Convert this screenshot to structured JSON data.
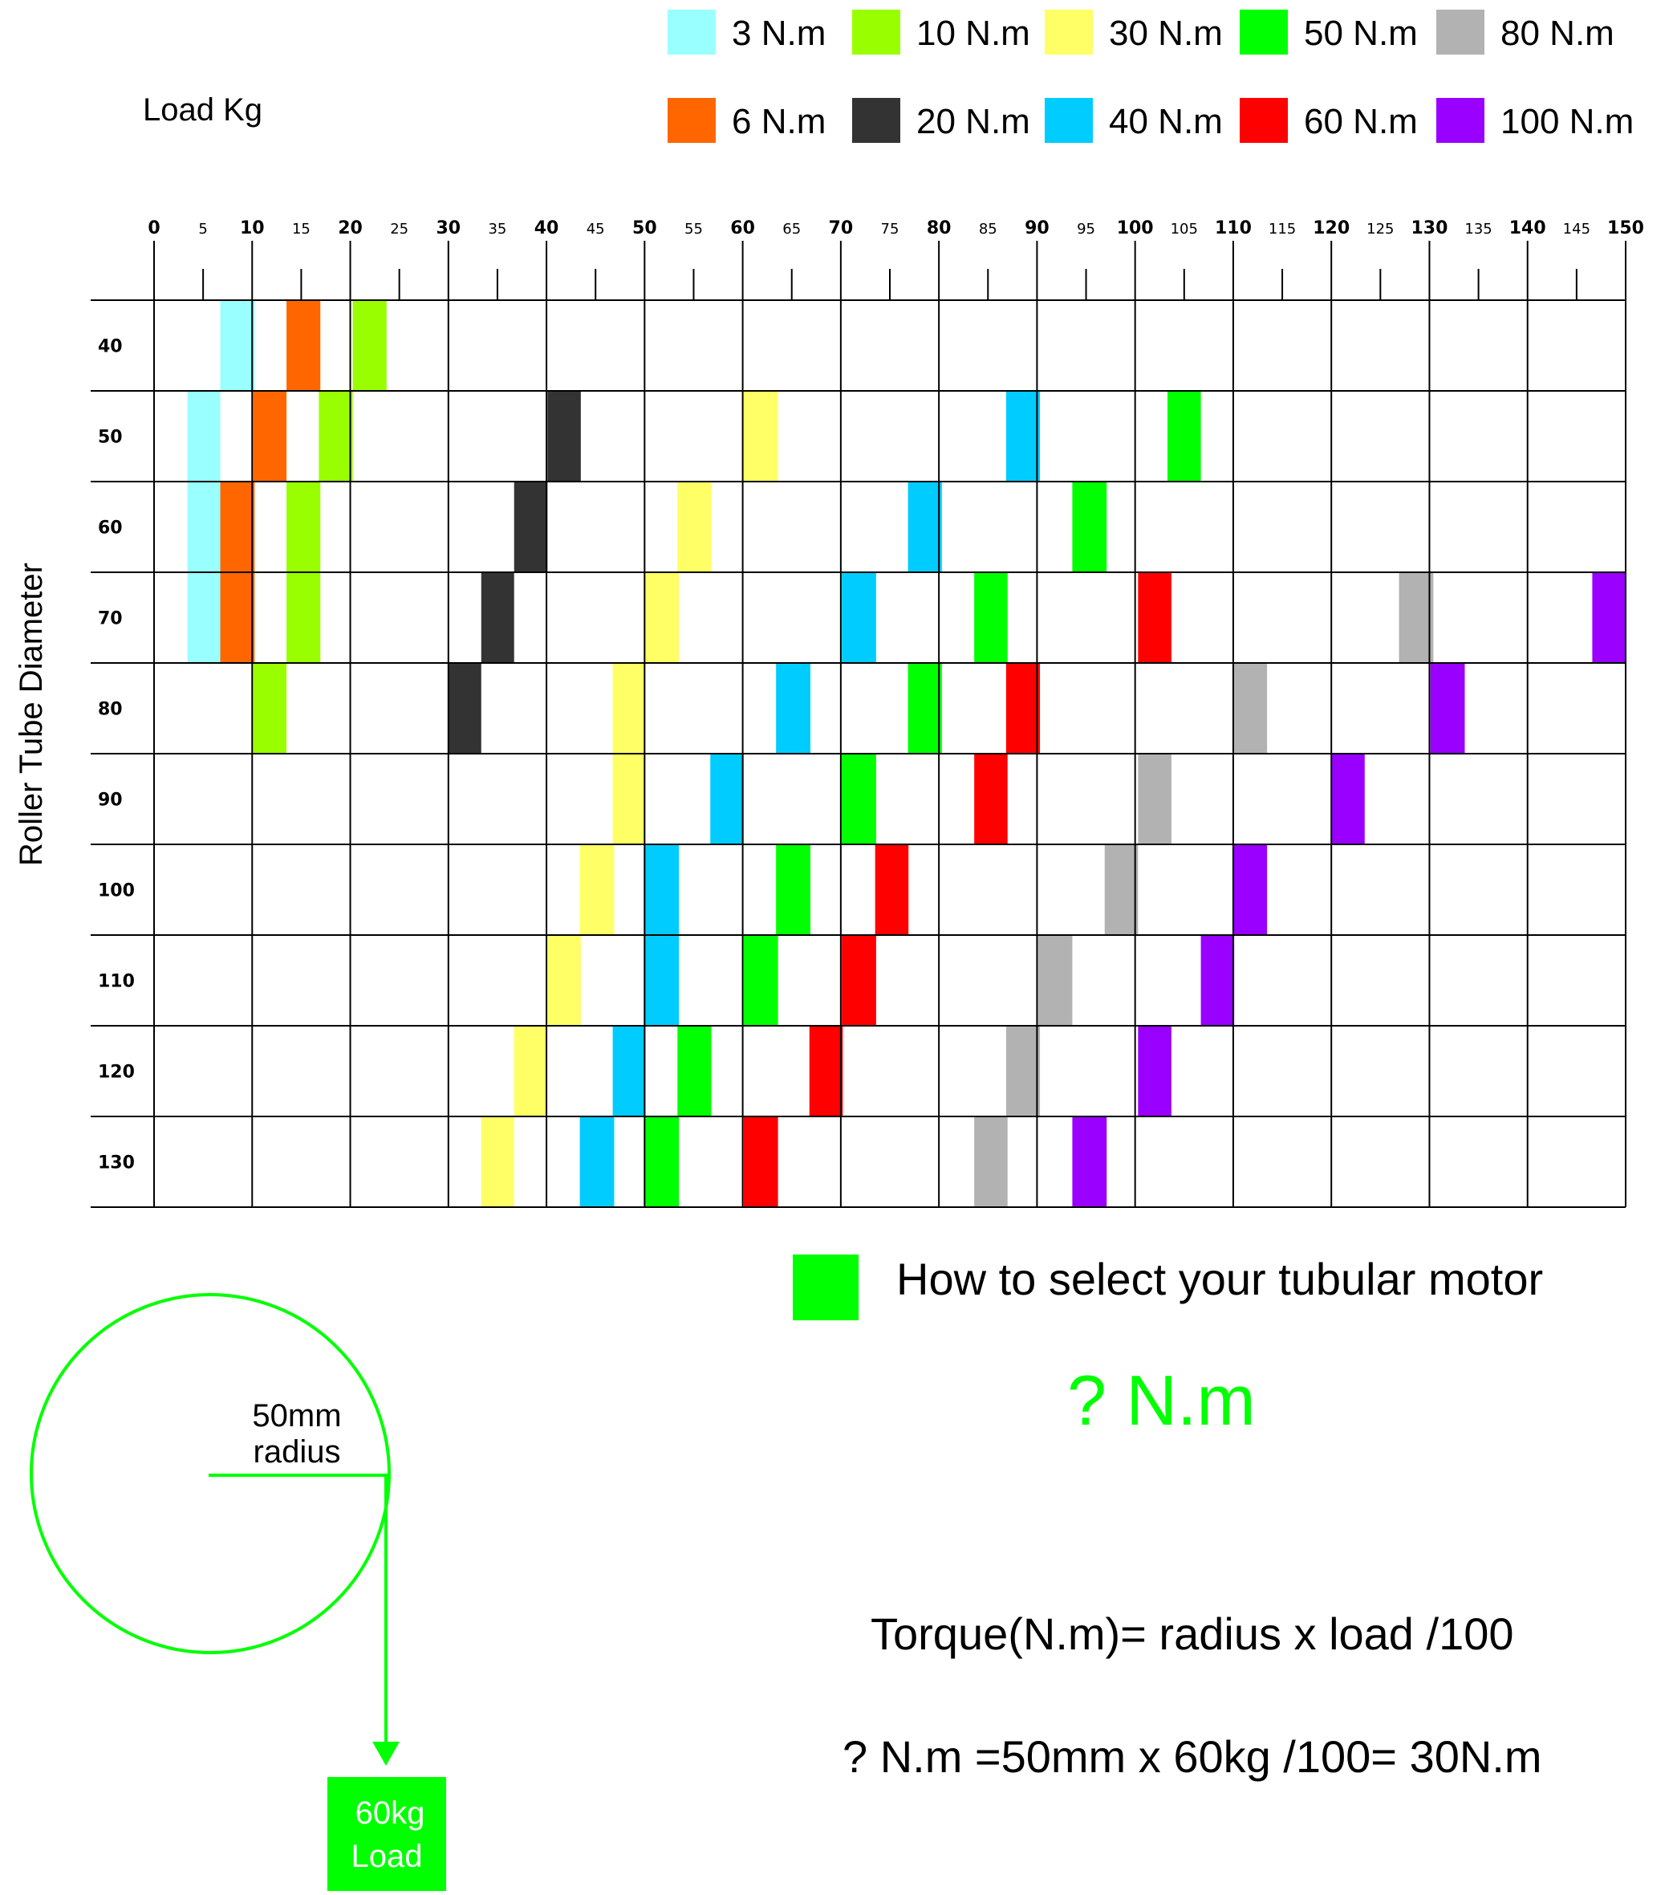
{
  "chart_data": {
    "type": "heatmap",
    "x_axis_title": "Load Kg",
    "y_axis_title": "Roller Tube Diameter",
    "x_range": [
      0,
      150
    ],
    "x_major_ticks": [
      0,
      10,
      20,
      30,
      40,
      50,
      60,
      70,
      80,
      90,
      100,
      110,
      120,
      130,
      140,
      150
    ],
    "x_minor_ticks": [
      5,
      15,
      25,
      35,
      45,
      55,
      65,
      75,
      85,
      95,
      105,
      115,
      125,
      135,
      145
    ],
    "rows": [
      40,
      50,
      60,
      70,
      80,
      90,
      100,
      110,
      120,
      130
    ],
    "legend": [
      {
        "label": "3 N.m",
        "torque": 3,
        "color": "#99ffff"
      },
      {
        "label": "10 N.m",
        "torque": 10,
        "color": "#99ff00"
      },
      {
        "label": "30 N.m",
        "torque": 30,
        "color": "#ffff66"
      },
      {
        "label": "50 N.m",
        "torque": 50,
        "color": "#00ff00"
      },
      {
        "label": "80 N.m",
        "torque": 80,
        "color": "#b2b2b2"
      },
      {
        "label": "6 N.m",
        "torque": 6,
        "color": "#ff6600"
      },
      {
        "label": "20 N.m",
        "torque": 20,
        "color": "#333333"
      },
      {
        "label": "40 N.m",
        "torque": 40,
        "color": "#00ccff"
      },
      {
        "label": "60 N.m",
        "torque": 60,
        "color": "#ff0000"
      },
      {
        "label": "100 N.m",
        "torque": 100,
        "color": "#9900ff"
      }
    ],
    "cells": [
      {
        "diameter": 40,
        "torque": 3,
        "load_from": 6.75,
        "load_to": 10.25
      },
      {
        "diameter": 40,
        "torque": 6,
        "load_from": 13.5,
        "load_to": 16.95
      },
      {
        "diameter": 40,
        "torque": 10,
        "load_from": 20.25,
        "load_to": 23.7
      },
      {
        "diameter": 50,
        "torque": 3,
        "load_from": 3.4,
        "load_to": 6.75
      },
      {
        "diameter": 50,
        "torque": 6,
        "load_from": 10.1,
        "load_to": 13.5
      },
      {
        "diameter": 50,
        "torque": 10,
        "load_from": 16.8,
        "load_to": 20.25
      },
      {
        "diameter": 50,
        "torque": 20,
        "load_from": 40.1,
        "load_to": 43.5
      },
      {
        "diameter": 50,
        "torque": 30,
        "load_from": 60.1,
        "load_to": 63.6
      },
      {
        "diameter": 50,
        "torque": 40,
        "load_from": 86.85,
        "load_to": 90.3
      },
      {
        "diameter": 50,
        "torque": 50,
        "load_from": 103.3,
        "load_to": 106.7
      },
      {
        "diameter": 60,
        "torque": 3,
        "load_from": 3.4,
        "load_to": 6.75
      },
      {
        "diameter": 60,
        "torque": 6,
        "load_from": 6.75,
        "load_to": 10.25
      },
      {
        "diameter": 60,
        "torque": 10,
        "load_from": 13.5,
        "load_to": 16.95
      },
      {
        "diameter": 60,
        "torque": 20,
        "load_from": 36.7,
        "load_to": 40.1
      },
      {
        "diameter": 60,
        "torque": 30,
        "load_from": 53.35,
        "load_to": 56.8
      },
      {
        "diameter": 60,
        "torque": 40,
        "load_from": 76.85,
        "load_to": 80.3
      },
      {
        "diameter": 60,
        "torque": 50,
        "load_from": 93.6,
        "load_to": 97.1
      },
      {
        "diameter": 70,
        "torque": 3,
        "load_from": 3.4,
        "load_to": 6.75
      },
      {
        "diameter": 70,
        "torque": 6,
        "load_from": 6.75,
        "load_to": 10.25
      },
      {
        "diameter": 70,
        "torque": 10,
        "load_from": 13.5,
        "load_to": 16.95
      },
      {
        "diameter": 70,
        "torque": 20,
        "load_from": 33.35,
        "load_to": 36.7
      },
      {
        "diameter": 70,
        "torque": 30,
        "load_from": 50.0,
        "load_to": 53.5
      },
      {
        "diameter": 70,
        "torque": 40,
        "load_from": 70.1,
        "load_to": 73.6
      },
      {
        "diameter": 70,
        "torque": 50,
        "load_from": 83.6,
        "load_to": 87.0
      },
      {
        "diameter": 70,
        "torque": 60,
        "load_from": 100.3,
        "load_to": 103.7
      },
      {
        "diameter": 70,
        "torque": 80,
        "load_from": 126.9,
        "load_to": 130.4
      },
      {
        "diameter": 70,
        "torque": 100,
        "load_from": 146.6,
        "load_to": 150.0
      },
      {
        "diameter": 80,
        "torque": 10,
        "load_from": 10.1,
        "load_to": 13.5
      },
      {
        "diameter": 80,
        "torque": 20,
        "load_from": 30.0,
        "load_to": 33.35
      },
      {
        "diameter": 80,
        "torque": 30,
        "load_from": 46.75,
        "load_to": 50.1
      },
      {
        "diameter": 80,
        "torque": 40,
        "load_from": 63.4,
        "load_to": 66.9
      },
      {
        "diameter": 80,
        "torque": 50,
        "load_from": 76.85,
        "load_to": 80.3
      },
      {
        "diameter": 80,
        "torque": 60,
        "load_from": 86.85,
        "load_to": 90.3
      },
      {
        "diameter": 80,
        "torque": 80,
        "load_from": 110.0,
        "load_to": 113.45
      },
      {
        "diameter": 80,
        "torque": 100,
        "load_from": 130.1,
        "load_to": 133.6
      },
      {
        "diameter": 90,
        "torque": 30,
        "load_from": 46.75,
        "load_to": 50.1
      },
      {
        "diameter": 90,
        "torque": 40,
        "load_from": 56.7,
        "load_to": 60.1
      },
      {
        "diameter": 90,
        "torque": 50,
        "load_from": 70.1,
        "load_to": 73.6
      },
      {
        "diameter": 90,
        "torque": 60,
        "load_from": 83.6,
        "load_to": 87.0
      },
      {
        "diameter": 90,
        "torque": 80,
        "load_from": 100.3,
        "load_to": 103.7
      },
      {
        "diameter": 90,
        "torque": 100,
        "load_from": 120.0,
        "load_to": 123.4
      },
      {
        "diameter": 100,
        "torque": 30,
        "load_from": 43.4,
        "load_to": 46.9
      },
      {
        "diameter": 100,
        "torque": 40,
        "load_from": 50.0,
        "load_to": 53.5
      },
      {
        "diameter": 100,
        "torque": 50,
        "load_from": 63.4,
        "load_to": 66.9
      },
      {
        "diameter": 100,
        "torque": 60,
        "load_from": 73.5,
        "load_to": 76.9
      },
      {
        "diameter": 100,
        "torque": 80,
        "load_from": 96.9,
        "load_to": 100.3
      },
      {
        "diameter": 100,
        "torque": 100,
        "load_from": 110.0,
        "load_to": 113.45
      },
      {
        "diameter": 110,
        "torque": 30,
        "load_from": 40.1,
        "load_to": 43.5
      },
      {
        "diameter": 110,
        "torque": 40,
        "load_from": 50.0,
        "load_to": 53.5
      },
      {
        "diameter": 110,
        "torque": 50,
        "load_from": 60.1,
        "load_to": 63.6
      },
      {
        "diameter": 110,
        "torque": 60,
        "load_from": 70.1,
        "load_to": 73.6
      },
      {
        "diameter": 110,
        "torque": 80,
        "load_from": 90.1,
        "load_to": 93.6
      },
      {
        "diameter": 110,
        "torque": 100,
        "load_from": 106.7,
        "load_to": 110.1
      },
      {
        "diameter": 120,
        "torque": 30,
        "load_from": 36.7,
        "load_to": 40.1
      },
      {
        "diameter": 120,
        "torque": 40,
        "load_from": 46.75,
        "load_to": 50.1
      },
      {
        "diameter": 120,
        "torque": 50,
        "load_from": 53.35,
        "load_to": 56.8
      },
      {
        "diameter": 120,
        "torque": 60,
        "load_from": 66.8,
        "load_to": 70.2
      },
      {
        "diameter": 120,
        "torque": 80,
        "load_from": 86.85,
        "load_to": 90.3
      },
      {
        "diameter": 120,
        "torque": 100,
        "load_from": 100.3,
        "load_to": 103.7
      },
      {
        "diameter": 130,
        "torque": 30,
        "load_from": 33.35,
        "load_to": 36.7
      },
      {
        "diameter": 130,
        "torque": 40,
        "load_from": 43.4,
        "load_to": 46.9
      },
      {
        "diameter": 130,
        "torque": 50,
        "load_from": 50.0,
        "load_to": 53.5
      },
      {
        "diameter": 130,
        "torque": 60,
        "load_from": 60.1,
        "load_to": 63.6
      },
      {
        "diameter": 130,
        "torque": 80,
        "load_from": 83.6,
        "load_to": 87.0
      },
      {
        "diameter": 130,
        "torque": 100,
        "load_from": 93.6,
        "load_to": 97.1
      }
    ]
  },
  "info": {
    "title": "How to select your tubular motor",
    "title_marker_color": "#00ff00",
    "unknown_torque": "? N.m",
    "radius_label_line1": "50mm",
    "radius_label_line2": "radius",
    "load_label_line1": "60kg",
    "load_label_line2": "Load",
    "formula": "Torque(N.m)= radius x load /100",
    "example": "? N.m =50mm x 60kg /100= 30N.m",
    "diagram_color": "#00ff00"
  }
}
